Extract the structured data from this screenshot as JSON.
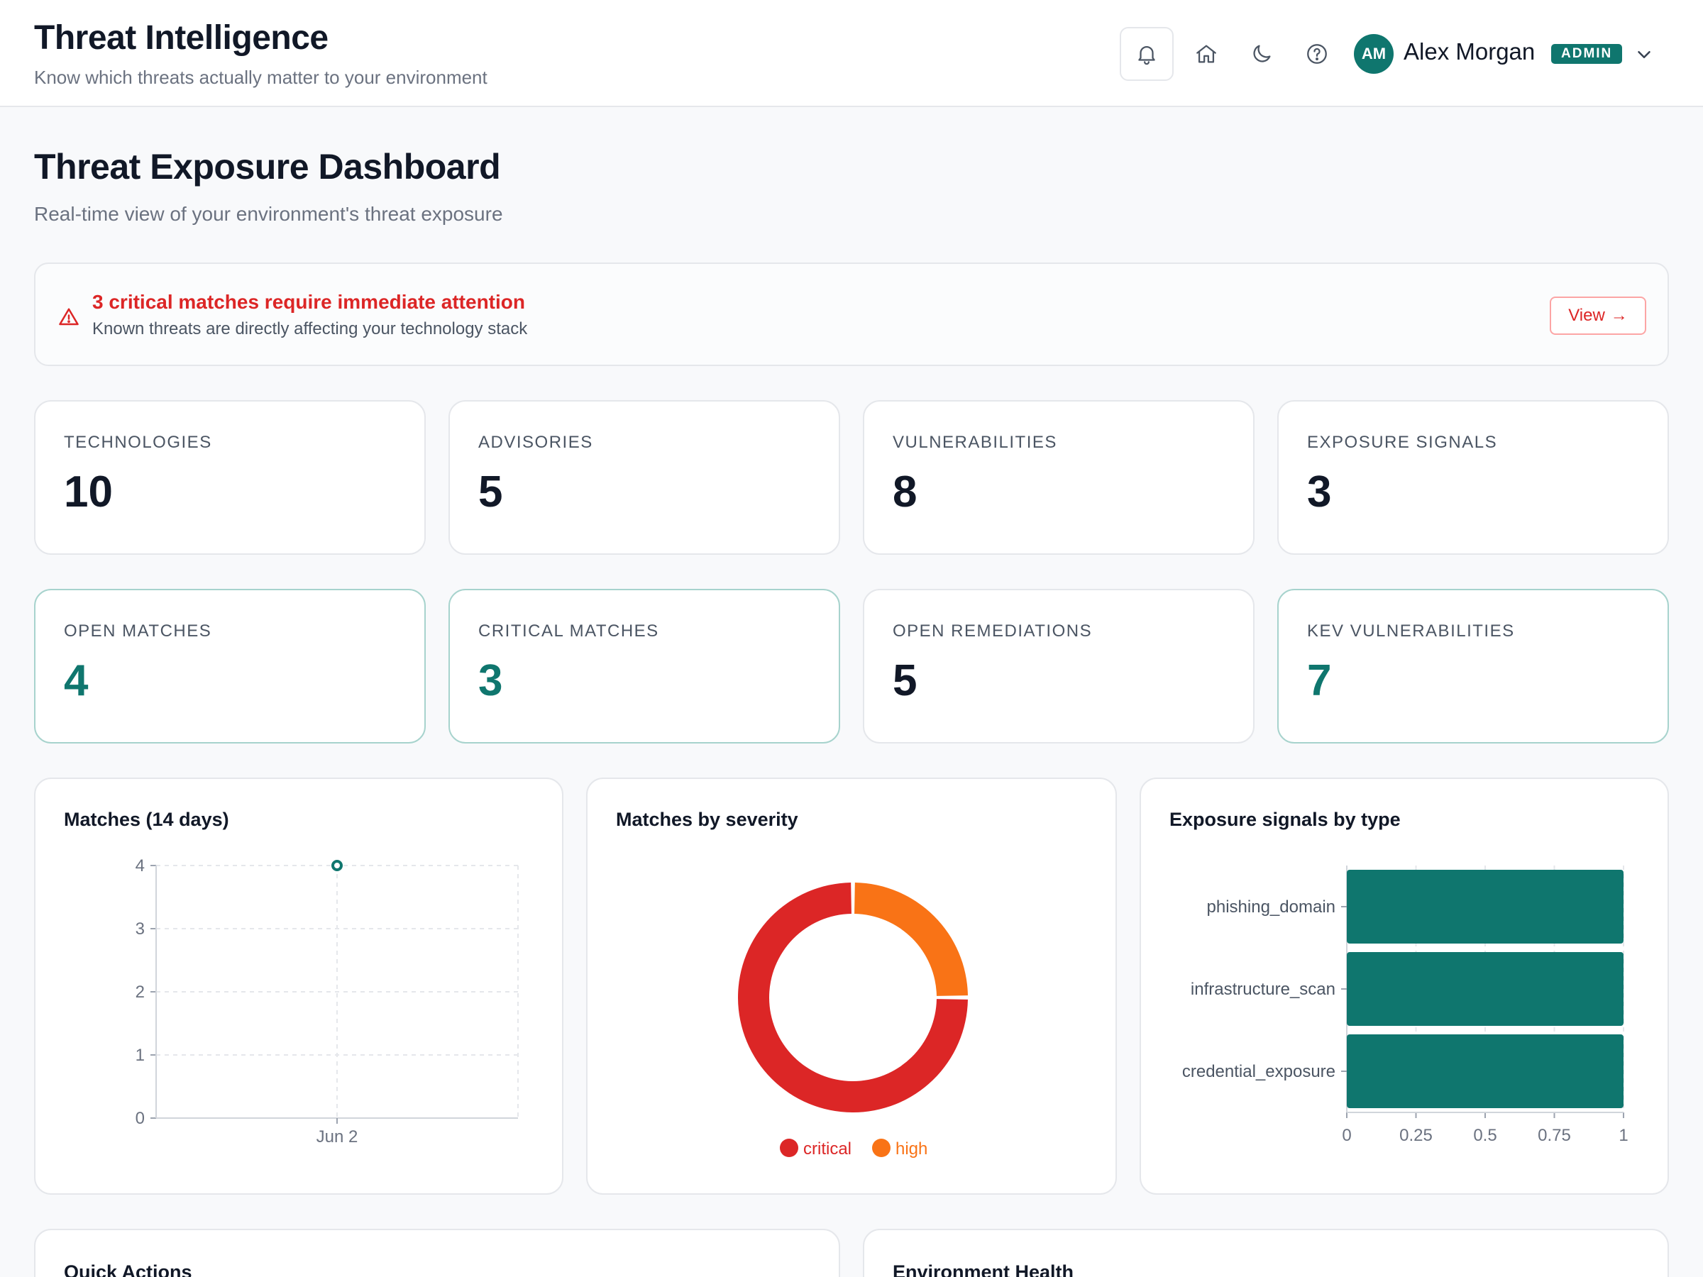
{
  "header": {
    "title": "Threat Intelligence",
    "subtitle": "Know which threats actually matter to your environment",
    "icons": [
      "bell-icon",
      "home-icon",
      "moon-icon",
      "help-icon",
      "chevron-down-icon"
    ],
    "user": {
      "initials": "AM",
      "name": "Alex Morgan",
      "role": "ADMIN"
    }
  },
  "page": {
    "title": "Threat Exposure Dashboard",
    "subtitle": "Real-time view of your environment's threat exposure"
  },
  "alert": {
    "title": "3 critical matches require immediate attention",
    "text": "Known threats are directly affecting your technology stack",
    "button": "View",
    "button_icon": "→"
  },
  "stats": [
    {
      "label": "TECHNOLOGIES",
      "value": "10"
    },
    {
      "label": "ADVISORIES",
      "value": "5"
    },
    {
      "label": "VULNERABILITIES",
      "value": "8"
    },
    {
      "label": "EXPOSURE SIGNALS",
      "value": "3"
    },
    {
      "label": "OPEN MATCHES",
      "value": "4"
    },
    {
      "label": "CRITICAL MATCHES",
      "value": "3"
    },
    {
      "label": "OPEN REMEDIATIONS",
      "value": "5"
    },
    {
      "label": "KEV VULNERABILITIES",
      "value": "7"
    }
  ],
  "colors": {
    "accent": "#0f766e",
    "critical": "#dc2626",
    "high": "#f97316"
  },
  "chart_data": [
    {
      "type": "line",
      "title": "Matches (14 days)",
      "x": [
        "Jun 2"
      ],
      "y": [
        4
      ],
      "ylim": [
        0,
        4
      ],
      "yticks": [
        "0",
        "1",
        "2",
        "3",
        "4"
      ],
      "grid": true
    },
    {
      "type": "pie",
      "title": "Matches by severity",
      "labels": [
        "critical",
        "high"
      ],
      "values": [
        3,
        1
      ],
      "colors": [
        "#dc2626",
        "#f97316"
      ],
      "legend": "bottom"
    },
    {
      "type": "bar",
      "orientation": "horizontal",
      "title": "Exposure signals by type",
      "categories": [
        "phishing_domain",
        "infrastructure_scan",
        "credential_exposure"
      ],
      "values": [
        1,
        1,
        1
      ],
      "xlim": [
        0,
        1
      ],
      "xticks": [
        "0",
        "0.25",
        "0.5",
        "0.75",
        "1"
      ],
      "grid": true
    }
  ],
  "sections": {
    "quick_actions": "Quick Actions",
    "environment_health": "Environment Health"
  }
}
